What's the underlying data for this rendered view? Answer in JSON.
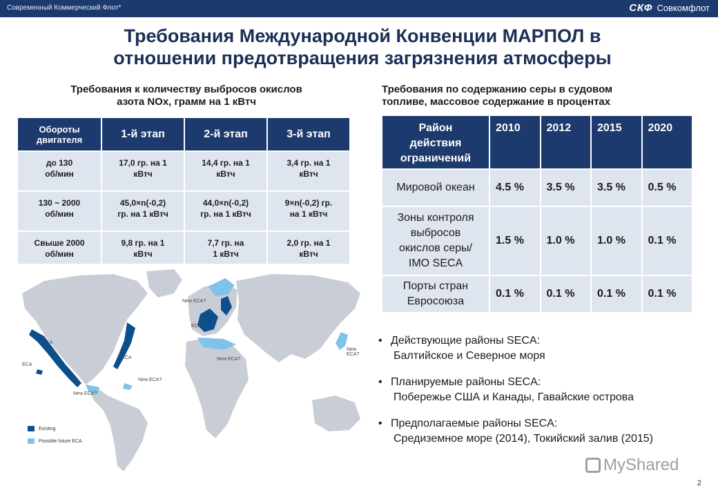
{
  "header": {
    "company": "Современный Коммерческий Флот*",
    "logo_mark": "СКФ",
    "logo_brand": "Совкомфлот"
  },
  "title_line1": "Требования Международной Конвенции МАРПОЛ в",
  "title_line2": "отношении предотвращения загрязнения атмосферы",
  "nox": {
    "caption_line1": "Требования к количеству выбросов окислов",
    "caption_line2": "азота NOx, грамм на 1 кВтч",
    "headers": [
      "Обороты двигателя",
      "1-й этап",
      "2-й этап",
      "3-й этап"
    ],
    "rows": [
      {
        "rpm": [
          "до 130",
          "об/мин"
        ],
        "s1": [
          "17,0 гр. на 1",
          "кВтч"
        ],
        "s2": [
          "14,4 гр. на 1",
          "кВтч"
        ],
        "s3": [
          "3,4 гр. на 1",
          "кВтч"
        ]
      },
      {
        "rpm": [
          "130 ~ 2000",
          "об/мин"
        ],
        "s1": [
          "45,0×n(-0,2)",
          "гр. на 1 кВтч"
        ],
        "s2": [
          "44,0×n(-0,2)",
          "гр. на 1 кВтч"
        ],
        "s3": [
          "9×n(-0,2) гр.",
          "на 1 кВтч"
        ]
      },
      {
        "rpm": [
          "Свыше 2000",
          "об/мин"
        ],
        "s1": [
          "9,8 гр. на 1",
          "кВтч"
        ],
        "s2": [
          "7,7 гр. на",
          "1 кВтч"
        ],
        "s3": [
          "2,0 гр. на 1",
          "кВтч"
        ]
      }
    ]
  },
  "sulfur": {
    "caption_line1": "Требования по содержанию серы в судовом",
    "caption_line2": "топливе, массовое содержание в процентах",
    "header_area": [
      "Район",
      "действия",
      "ограничений"
    ],
    "years": [
      "2010",
      "2012",
      "2015",
      "2020"
    ],
    "rows": [
      {
        "area": [
          "Мировой океан"
        ],
        "values": [
          "4.5 %",
          "3.5 %",
          "3.5 %",
          "0.5 %"
        ]
      },
      {
        "area": [
          "Зоны контроля",
          "выбросов",
          "окислов серы/",
          "IMO SECA"
        ],
        "values": [
          "1.5 %",
          "1.0 %",
          "1.0 %",
          "0.1 %"
        ]
      },
      {
        "area": [
          "Порты стран",
          "Евросоюза"
        ],
        "values": [
          "0.1 %",
          "0.1 %",
          "0.1 %",
          "0.1 %"
        ]
      }
    ]
  },
  "map": {
    "labels": [
      "ECA",
      "ECA",
      "New ECA?",
      "ECA",
      "New ECA?",
      "New ECA?",
      "New ECA?",
      "ECA",
      "New ECA?"
    ],
    "legend": [
      {
        "label": "Existing",
        "color": "#0c4f8a"
      },
      {
        "label": "Possible future ECA",
        "color": "#7fc3e8"
      }
    ],
    "land_color": "#c9ced6"
  },
  "bullets": [
    {
      "head": "Действующие районы SECA:",
      "sub": "Балтийское и  Северное моря"
    },
    {
      "head": "Планируемые районы SECA:",
      "sub": "Побережье США  и Канады, Гавайские острова"
    },
    {
      "head": "Предполагаемые районы SECA:",
      "sub": "Средиземное море (2014), Токийский залив (2015)"
    }
  ],
  "page_number": "2",
  "watermark": "MyShared"
}
